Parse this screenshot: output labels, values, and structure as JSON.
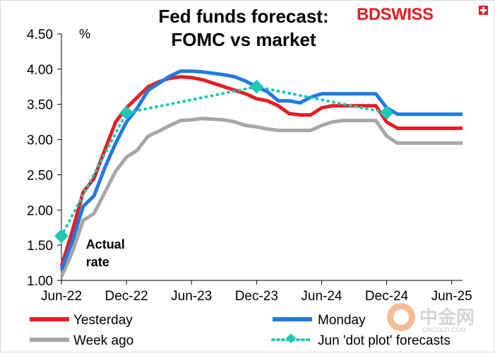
{
  "brand": {
    "logo_text": "BDSWISS",
    "logo_color": "#e31e24",
    "watermark_cn": "中金网",
    "watermark_url": "CNGOLD.COM"
  },
  "chart_data": {
    "type": "line",
    "title": "Fed funds forecast:",
    "subtitle": "FOMC vs market",
    "ylabel": "%",
    "xlabel": "",
    "ylim": [
      1.0,
      4.5
    ],
    "yticks": [
      "1.00",
      "1.50",
      "2.00",
      "2.50",
      "3.00",
      "3.50",
      "4.00",
      "4.50"
    ],
    "ytick_values": [
      1.0,
      1.5,
      2.0,
      2.5,
      3.0,
      3.5,
      4.0,
      4.5
    ],
    "xticks": [
      "Jun-22",
      "Dec-22",
      "Jun-23",
      "Dec-23",
      "Jun-24",
      "Dec-24",
      "Jun-25"
    ],
    "xtick_values": [
      "2022-06",
      "2022-12",
      "2023-06",
      "2023-12",
      "2024-06",
      "2024-12",
      "2025-06"
    ],
    "xlim": [
      "2022-06",
      "2025-07"
    ],
    "grid": false,
    "legend_position": "bottom",
    "annotation": {
      "line1": "Actual",
      "line2": "rate",
      "x": "2022-08",
      "y": 1.45
    },
    "series": [
      {
        "name": "Yesterday",
        "color": "#e31e24",
        "style": "solid",
        "x": [
          "2022-06",
          "2022-07",
          "2022-08",
          "2022-09",
          "2022-10",
          "2022-11",
          "2022-12",
          "2023-01",
          "2023-02",
          "2023-03",
          "2023-04",
          "2023-05",
          "2023-06",
          "2023-07",
          "2023-08",
          "2023-09",
          "2023-10",
          "2023-11",
          "2023-12",
          "2024-01",
          "2024-02",
          "2024-03",
          "2024-04",
          "2024-05",
          "2024-06",
          "2024-07",
          "2024-08",
          "2024-09",
          "2024-10",
          "2024-11",
          "2024-12",
          "2025-01",
          "2025-02",
          "2025-03",
          "2025-04",
          "2025-05",
          "2025-06",
          "2025-07"
        ],
        "values": [
          1.2,
          1.7,
          2.25,
          2.45,
          2.85,
          3.25,
          3.45,
          3.6,
          3.75,
          3.82,
          3.87,
          3.89,
          3.88,
          3.85,
          3.8,
          3.75,
          3.7,
          3.65,
          3.58,
          3.55,
          3.48,
          3.37,
          3.35,
          3.35,
          3.45,
          3.48,
          3.48,
          3.48,
          3.48,
          3.48,
          3.25,
          3.16,
          3.16,
          3.16,
          3.16,
          3.16,
          3.16,
          3.16
        ]
      },
      {
        "name": "Monday",
        "color": "#1f7ae0",
        "style": "solid",
        "x": [
          "2022-06",
          "2022-07",
          "2022-08",
          "2022-09",
          "2022-10",
          "2022-11",
          "2022-12",
          "2023-01",
          "2023-02",
          "2023-03",
          "2023-04",
          "2023-05",
          "2023-06",
          "2023-07",
          "2023-08",
          "2023-09",
          "2023-10",
          "2023-11",
          "2023-12",
          "2024-01",
          "2024-02",
          "2024-03",
          "2024-04",
          "2024-05",
          "2024-06",
          "2024-07",
          "2024-08",
          "2024-09",
          "2024-10",
          "2024-11",
          "2024-12",
          "2025-01",
          "2025-02",
          "2025-03",
          "2025-04",
          "2025-05",
          "2025-06",
          "2025-07"
        ],
        "values": [
          1.15,
          1.55,
          2.05,
          2.2,
          2.6,
          2.95,
          3.25,
          3.45,
          3.7,
          3.8,
          3.9,
          3.97,
          3.97,
          3.96,
          3.94,
          3.92,
          3.89,
          3.83,
          3.75,
          3.68,
          3.55,
          3.55,
          3.52,
          3.6,
          3.65,
          3.65,
          3.65,
          3.65,
          3.65,
          3.65,
          3.45,
          3.36,
          3.36,
          3.36,
          3.36,
          3.36,
          3.36,
          3.36
        ]
      },
      {
        "name": "Week ago",
        "color": "#a6a6a6",
        "style": "solid",
        "x": [
          "2022-06",
          "2022-07",
          "2022-08",
          "2022-09",
          "2022-10",
          "2022-11",
          "2022-12",
          "2023-01",
          "2023-02",
          "2023-03",
          "2023-04",
          "2023-05",
          "2023-06",
          "2023-07",
          "2023-08",
          "2023-09",
          "2023-10",
          "2023-11",
          "2023-12",
          "2024-01",
          "2024-02",
          "2024-03",
          "2024-04",
          "2024-05",
          "2024-06",
          "2024-07",
          "2024-08",
          "2024-09",
          "2024-10",
          "2024-11",
          "2024-12",
          "2025-01",
          "2025-02",
          "2025-03",
          "2025-04",
          "2025-05",
          "2025-06",
          "2025-07"
        ],
        "values": [
          1.05,
          1.4,
          1.85,
          1.95,
          2.25,
          2.55,
          2.75,
          2.85,
          3.05,
          3.12,
          3.2,
          3.27,
          3.28,
          3.3,
          3.29,
          3.28,
          3.25,
          3.2,
          3.18,
          3.15,
          3.13,
          3.13,
          3.13,
          3.13,
          3.2,
          3.25,
          3.27,
          3.27,
          3.27,
          3.27,
          3.05,
          2.95,
          2.95,
          2.95,
          2.95,
          2.95,
          2.95,
          2.95
        ]
      },
      {
        "name": "Jun 'dot plot' forecasts",
        "color": "#1ec8b4",
        "style": "dotted",
        "marker": "diamond",
        "x": [
          "2022-06",
          "2022-12",
          "2023-12",
          "2024-12"
        ],
        "values": [
          1.63,
          3.38,
          3.75,
          3.38
        ]
      }
    ]
  }
}
